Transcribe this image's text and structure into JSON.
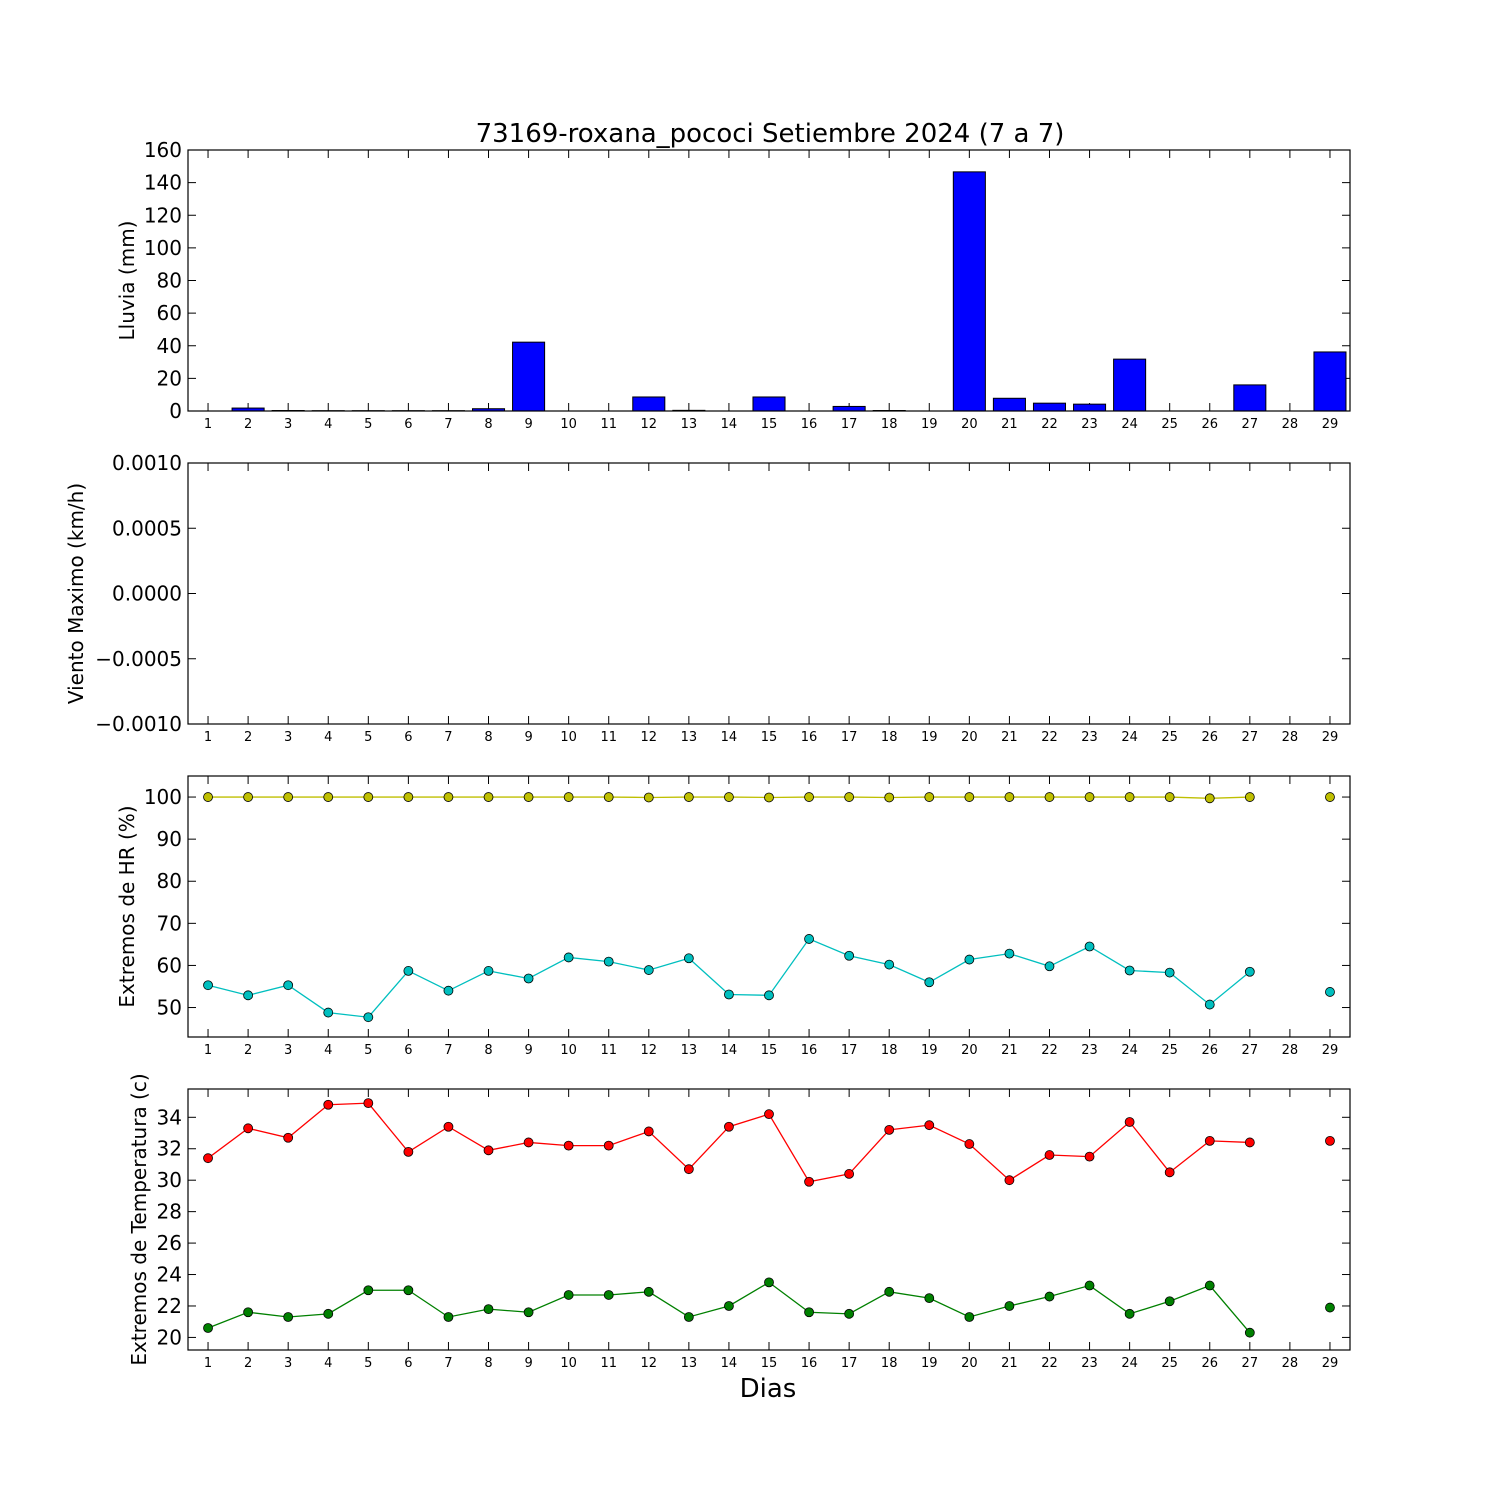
{
  "chart_data": [
    {
      "type": "bar",
      "title": "73169-roxana_pococi Setiembre 2024  (7 a 7)",
      "ylabel": "Lluvia (mm)",
      "xlabel": "",
      "ylim": [
        0,
        160
      ],
      "yticks": [
        "0",
        "20",
        "40",
        "60",
        "80",
        "100",
        "120",
        "140",
        "160"
      ],
      "x": [
        1,
        2,
        3,
        4,
        5,
        6,
        7,
        8,
        9,
        10,
        11,
        12,
        13,
        14,
        15,
        16,
        17,
        18,
        19,
        20,
        21,
        22,
        23,
        24,
        25,
        26,
        27,
        28,
        29
      ],
      "series": [
        {
          "color": "#0000ff",
          "values": [
            0,
            1.8,
            0.3,
            0.2,
            0.2,
            0.2,
            0.2,
            1.4,
            42.2,
            0,
            0,
            8.6,
            0.4,
            0,
            8.6,
            0,
            2.8,
            0.3,
            0,
            146.6,
            7.8,
            4.8,
            4.2,
            31.8,
            0,
            0,
            16,
            0,
            36.2
          ]
        }
      ]
    },
    {
      "type": "line",
      "title": "",
      "ylabel": "Viento Maximo (km/h)",
      "xlabel": "",
      "ylim": [
        -0.001,
        0.001
      ],
      "yticks": [
        "−0.0010",
        "−0.0005",
        "0.0000",
        "0.0005",
        "0.0010"
      ],
      "x": [
        1,
        2,
        3,
        4,
        5,
        6,
        7,
        8,
        9,
        10,
        11,
        12,
        13,
        14,
        15,
        16,
        17,
        18,
        19,
        20,
        21,
        22,
        23,
        24,
        25,
        26,
        27,
        28,
        29
      ],
      "series": []
    },
    {
      "type": "line",
      "title": "",
      "ylabel": "Extremos de HR (%)",
      "xlabel": "",
      "ylim": [
        43,
        105
      ],
      "yticks": [
        "50",
        "60",
        "70",
        "80",
        "90",
        "100"
      ],
      "ytick_values": [
        50,
        60,
        70,
        80,
        90,
        100
      ],
      "x": [
        1,
        2,
        3,
        4,
        5,
        6,
        7,
        8,
        9,
        10,
        11,
        12,
        13,
        14,
        15,
        16,
        17,
        18,
        19,
        20,
        21,
        22,
        23,
        24,
        25,
        26,
        27,
        28,
        29
      ],
      "series": [
        {
          "color": "#bfbf00",
          "values": [
            100,
            100,
            100,
            100,
            100,
            100,
            100,
            100,
            100,
            100,
            100,
            99.9,
            100,
            100,
            99.9,
            100,
            100,
            99.9,
            100,
            100,
            100,
            100,
            100,
            100,
            100,
            99.7,
            100,
            null,
            100
          ]
        },
        {
          "color": "#00bfbf",
          "values": [
            55.3,
            52.9,
            55.3,
            48.8,
            47.7,
            58.7,
            54,
            58.7,
            56.9,
            61.9,
            60.9,
            58.9,
            61.7,
            53.1,
            52.9,
            66.3,
            62.3,
            60.2,
            56,
            61.4,
            62.8,
            59.8,
            64.5,
            58.8,
            58.3,
            50.7,
            58.5,
            null,
            53.7
          ]
        }
      ]
    },
    {
      "type": "line",
      "title": "",
      "ylabel": "Extremos de Temperatura (c)",
      "xlabel": "Dias",
      "ylim": [
        19.2,
        35.8
      ],
      "yticks": [
        "20",
        "22",
        "24",
        "26",
        "28",
        "30",
        "32",
        "34"
      ],
      "ytick_values": [
        20,
        22,
        24,
        26,
        28,
        30,
        32,
        34
      ],
      "x": [
        1,
        2,
        3,
        4,
        5,
        6,
        7,
        8,
        9,
        10,
        11,
        12,
        13,
        14,
        15,
        16,
        17,
        18,
        19,
        20,
        21,
        22,
        23,
        24,
        25,
        26,
        27,
        28,
        29
      ],
      "series": [
        {
          "color": "#ff0000",
          "values": [
            31.4,
            33.3,
            32.7,
            34.8,
            34.9,
            31.8,
            33.4,
            31.9,
            32.4,
            32.2,
            32.2,
            33.1,
            30.7,
            33.4,
            34.2,
            29.9,
            30.4,
            33.2,
            33.5,
            32.3,
            30,
            31.6,
            31.5,
            33.7,
            30.5,
            32.5,
            32.4,
            null,
            32.5
          ]
        },
        {
          "color": "#008000",
          "values": [
            20.6,
            21.6,
            21.3,
            21.5,
            23,
            23,
            21.3,
            21.8,
            21.6,
            22.7,
            22.7,
            22.9,
            21.3,
            22,
            23.5,
            21.6,
            21.5,
            22.9,
            22.5,
            21.3,
            22,
            22.6,
            23.3,
            21.5,
            22.3,
            23.3,
            20.3,
            null,
            21.9
          ]
        }
      ]
    }
  ]
}
